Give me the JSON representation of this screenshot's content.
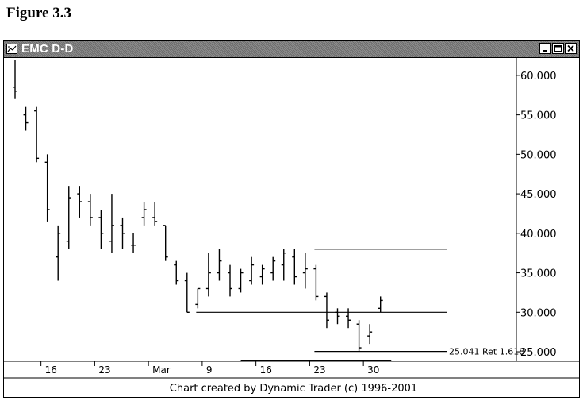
{
  "figure_title": "Figure 3.3",
  "window": {
    "title": "EMC D-D",
    "icon": "chart-app-icon",
    "controls": [
      "minimize-icon",
      "maximize-icon",
      "close-icon"
    ]
  },
  "credit": "Chart created by Dynamic Trader (c) 1996-2001",
  "chart_data": {
    "type": "ohlc-bar",
    "title": "EMC D-D",
    "ylim": [
      24.2,
      62.2
    ],
    "y_ticks": [
      {
        "value": 25,
        "label": "25.000"
      },
      {
        "value": 30,
        "label": "30.000"
      },
      {
        "value": 35,
        "label": "35.000"
      },
      {
        "value": 40,
        "label": "40.000"
      },
      {
        "value": 45,
        "label": "45.000"
      },
      {
        "value": 50,
        "label": "50.000"
      },
      {
        "value": 55,
        "label": "55.000"
      },
      {
        "value": 60,
        "label": "60.000"
      }
    ],
    "x_ticks": [
      {
        "index": 3,
        "label": "16"
      },
      {
        "index": 8,
        "label": "23"
      },
      {
        "index": 13,
        "label": "Mar"
      },
      {
        "index": 18,
        "label": "9"
      },
      {
        "index": 23,
        "label": "16"
      },
      {
        "index": 28,
        "label": "23"
      },
      {
        "index": 33,
        "label": "30"
      }
    ],
    "bars": [
      {
        "h": 62.0,
        "l": 57.0,
        "o": 58.5,
        "c": 58.0
      },
      {
        "h": 56.0,
        "l": 53.0,
        "o": 55.0,
        "c": 54.0
      },
      {
        "h": 56.0,
        "l": 49.0,
        "o": 55.5,
        "c": 49.5
      },
      {
        "h": 50.0,
        "l": 41.5,
        "o": 49.0,
        "c": 43.0
      },
      {
        "h": 41.0,
        "l": 34.0,
        "o": 37.0,
        "c": 40.0
      },
      {
        "h": 46.0,
        "l": 38.0,
        "o": 39.0,
        "c": 44.5
      },
      {
        "h": 46.0,
        "l": 42.0,
        "o": 45.0,
        "c": 44.0
      },
      {
        "h": 45.0,
        "l": 41.0,
        "o": 44.0,
        "c": 42.0
      },
      {
        "h": 43.0,
        "l": 38.0,
        "o": 42.0,
        "c": 40.0
      },
      {
        "h": 45.0,
        "l": 37.5,
        "o": 39.0,
        "c": 41.0
      },
      {
        "h": 42.0,
        "l": 38.0,
        "o": 41.0,
        "c": 40.0
      },
      {
        "h": 40.0,
        "l": 37.5,
        "o": 38.5,
        "c": 38.5
      },
      {
        "h": 44.0,
        "l": 41.0,
        "o": 42.0,
        "c": 43.0
      },
      {
        "h": 44.0,
        "l": 41.0,
        "o": 42.0,
        "c": 41.5
      },
      {
        "h": 41.0,
        "l": 36.5,
        "o": 41.0,
        "c": 37.0
      },
      {
        "h": 36.5,
        "l": 33.5,
        "o": 36.0,
        "c": 34.0
      },
      {
        "h": 35.0,
        "l": 30.0,
        "o": 34.0,
        "c": 30.0
      },
      {
        "h": 33.0,
        "l": 30.5,
        "o": 31.0,
        "c": 33.0
      },
      {
        "h": 37.5,
        "l": 32.0,
        "o": 33.0,
        "c": 35.0
      },
      {
        "h": 38.0,
        "l": 34.0,
        "o": 35.0,
        "c": 36.5
      },
      {
        "h": 36.0,
        "l": 32.0,
        "o": 35.0,
        "c": 33.0
      },
      {
        "h": 35.5,
        "l": 32.5,
        "o": 33.0,
        "c": 35.0
      },
      {
        "h": 37.0,
        "l": 33.5,
        "o": 34.0,
        "c": 36.0
      },
      {
        "h": 36.0,
        "l": 33.5,
        "o": 34.5,
        "c": 35.5
      },
      {
        "h": 37.0,
        "l": 34.0,
        "o": 35.0,
        "c": 36.5
      },
      {
        "h": 38.0,
        "l": 34.0,
        "o": 36.0,
        "c": 37.5
      },
      {
        "h": 38.0,
        "l": 33.5,
        "o": 37.0,
        "c": 34.5
      },
      {
        "h": 37.5,
        "l": 33.0,
        "o": 35.0,
        "c": 35.5
      },
      {
        "h": 36.0,
        "l": 31.5,
        "o": 35.5,
        "c": 32.0
      },
      {
        "h": 32.5,
        "l": 28.0,
        "o": 32.0,
        "c": 29.0
      },
      {
        "h": 30.5,
        "l": 28.5,
        "o": 30.0,
        "c": 29.5
      },
      {
        "h": 30.5,
        "l": 28.0,
        "o": 29.5,
        "c": 29.0
      },
      {
        "h": 29.0,
        "l": 25.0,
        "o": 28.5,
        "c": 25.5
      },
      {
        "h": 28.5,
        "l": 26.0,
        "o": 27.0,
        "c": 27.5
      },
      {
        "h": 32.0,
        "l": 30.0,
        "o": 30.5,
        "c": 31.5
      }
    ],
    "levels": [
      {
        "value": 38.0,
        "from": 28,
        "to": 40
      },
      {
        "value": 30.0,
        "from": 17,
        "to": 40
      },
      {
        "value": 25.041,
        "from": 28,
        "to": 40,
        "label": "25.041 Ret 1.618"
      }
    ]
  }
}
